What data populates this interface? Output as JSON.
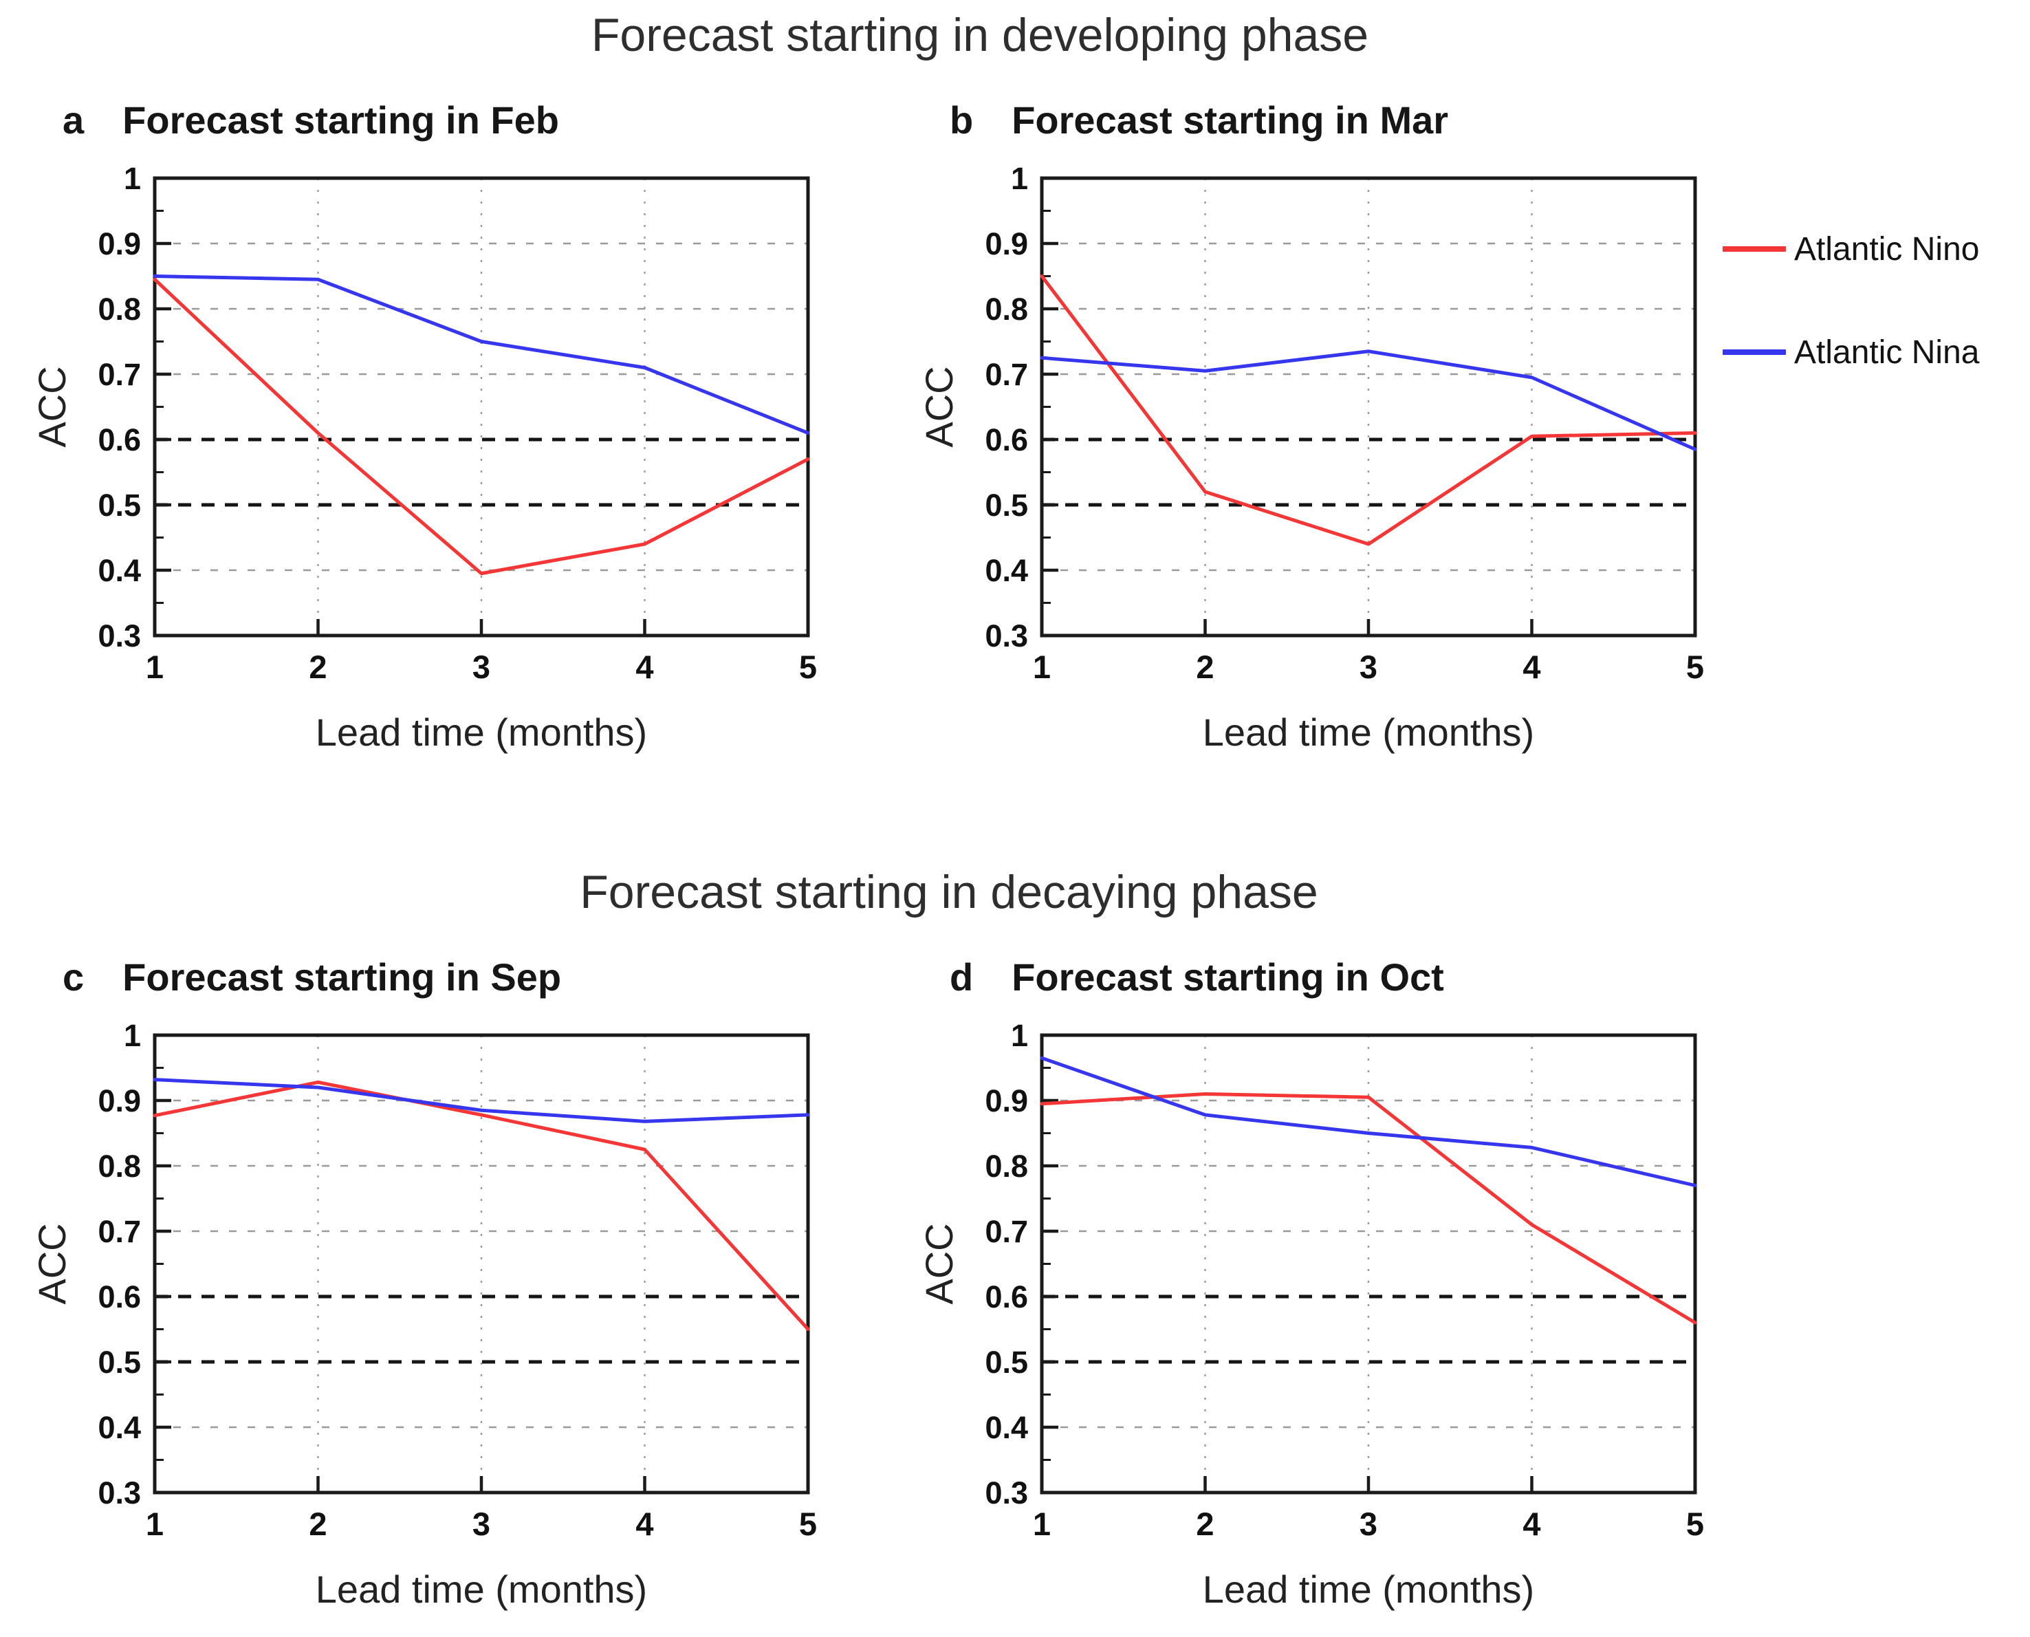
{
  "figure": {
    "sections": [
      {
        "id": "developing",
        "title": "Forecast starting in developing phase"
      },
      {
        "id": "decaying",
        "title": "Forecast starting in decaying phase"
      }
    ],
    "legend": {
      "items": [
        {
          "label": "Atlantic Nino",
          "color": "#f43636"
        },
        {
          "label": "Atlantic Nina",
          "color": "#3636ee"
        }
      ]
    },
    "colors": {
      "nino_red": "#f43636",
      "nina_blue": "#3636ee",
      "axis_black": "#1a1a1a",
      "grid_light": "#9a9a9a",
      "ref_dashed_black": "#151515"
    }
  },
  "chart_data": [
    {
      "id": "a",
      "panel_letter": "a",
      "type": "line",
      "title": "Forecast starting in Feb",
      "xlabel": "Lead time (months)",
      "ylabel": "ACC",
      "x": [
        1,
        2,
        3,
        4,
        5
      ],
      "xtick_labels": [
        "1",
        "2",
        "3",
        "4",
        "5"
      ],
      "ylim": [
        0.3,
        1.0
      ],
      "yticks": [
        0.3,
        0.4,
        0.5,
        0.6,
        0.7,
        0.8,
        0.9,
        1
      ],
      "ytick_labels": [
        "0.3",
        "0.4",
        "0.5",
        "0.6",
        "0.7",
        "0.8",
        "0.9",
        "1"
      ],
      "grid_y_light": [
        0.4,
        0.7,
        0.8,
        0.9
      ],
      "grid_y_dashed_black": [
        0.5,
        0.6
      ],
      "grid_x_light": [
        2,
        3,
        4
      ],
      "series": [
        {
          "name": "Atlantic Nino",
          "color": "#f43636",
          "values": [
            0.845,
            0.61,
            0.395,
            0.44,
            0.57
          ]
        },
        {
          "name": "Atlantic Nina",
          "color": "#3636ee",
          "values": [
            0.85,
            0.845,
            0.75,
            0.71,
            0.61
          ]
        }
      ]
    },
    {
      "id": "b",
      "panel_letter": "b",
      "type": "line",
      "title": "Forecast starting in Mar",
      "xlabel": "Lead time (months)",
      "ylabel": "ACC",
      "x": [
        1,
        2,
        3,
        4,
        5
      ],
      "xtick_labels": [
        "1",
        "2",
        "3",
        "4",
        "5"
      ],
      "ylim": [
        0.3,
        1.0
      ],
      "yticks": [
        0.3,
        0.4,
        0.5,
        0.6,
        0.7,
        0.8,
        0.9,
        1
      ],
      "ytick_labels": [
        "0.3",
        "0.4",
        "0.5",
        "0.6",
        "0.7",
        "0.8",
        "0.9",
        "1"
      ],
      "grid_y_light": [
        0.4,
        0.7,
        0.8,
        0.9
      ],
      "grid_y_dashed_black": [
        0.5,
        0.6
      ],
      "grid_x_light": [
        2,
        3,
        4
      ],
      "series": [
        {
          "name": "Atlantic Nino",
          "color": "#f43636",
          "values": [
            0.85,
            0.52,
            0.44,
            0.605,
            0.61
          ]
        },
        {
          "name": "Atlantic Nina",
          "color": "#3636ee",
          "values": [
            0.725,
            0.705,
            0.735,
            0.695,
            0.585
          ]
        }
      ]
    },
    {
      "id": "c",
      "panel_letter": "c",
      "type": "line",
      "title": "Forecast starting in Sep",
      "xlabel": "Lead time (months)",
      "ylabel": "ACC",
      "x": [
        1,
        2,
        3,
        4,
        5
      ],
      "xtick_labels": [
        "1",
        "2",
        "3",
        "4",
        "5"
      ],
      "ylim": [
        0.3,
        1.0
      ],
      "yticks": [
        0.3,
        0.4,
        0.5,
        0.6,
        0.7,
        0.8,
        0.9,
        1
      ],
      "ytick_labels": [
        "0.3",
        "0.4",
        "0.5",
        "0.6",
        "0.7",
        "0.8",
        "0.9",
        "1"
      ],
      "grid_y_light": [
        0.4,
        0.7,
        0.8,
        0.9
      ],
      "grid_y_dashed_black": [
        0.5,
        0.6
      ],
      "grid_x_light": [
        2,
        3,
        4
      ],
      "series": [
        {
          "name": "Atlantic Nino",
          "color": "#f43636",
          "values": [
            0.877,
            0.928,
            0.878,
            0.825,
            0.55
          ]
        },
        {
          "name": "Atlantic Nina",
          "color": "#3636ee",
          "values": [
            0.932,
            0.92,
            0.885,
            0.868,
            0.878
          ]
        }
      ]
    },
    {
      "id": "d",
      "panel_letter": "d",
      "type": "line",
      "title": "Forecast starting in Oct",
      "xlabel": "Lead time (months)",
      "ylabel": "ACC",
      "x": [
        1,
        2,
        3,
        4,
        5
      ],
      "xtick_labels": [
        "1",
        "2",
        "3",
        "4",
        "5"
      ],
      "ylim": [
        0.3,
        1.0
      ],
      "yticks": [
        0.3,
        0.4,
        0.5,
        0.6,
        0.7,
        0.8,
        0.9,
        1
      ],
      "ytick_labels": [
        "0.3",
        "0.4",
        "0.5",
        "0.6",
        "0.7",
        "0.8",
        "0.9",
        "1"
      ],
      "grid_y_light": [
        0.4,
        0.7,
        0.8,
        0.9
      ],
      "grid_y_dashed_black": [
        0.5,
        0.6
      ],
      "grid_x_light": [
        2,
        3,
        4
      ],
      "series": [
        {
          "name": "Atlantic Nino",
          "color": "#f43636",
          "values": [
            0.895,
            0.91,
            0.905,
            0.71,
            0.56
          ]
        },
        {
          "name": "Atlantic Nina",
          "color": "#3636ee",
          "values": [
            0.965,
            0.878,
            0.85,
            0.828,
            0.77
          ]
        }
      ]
    }
  ]
}
